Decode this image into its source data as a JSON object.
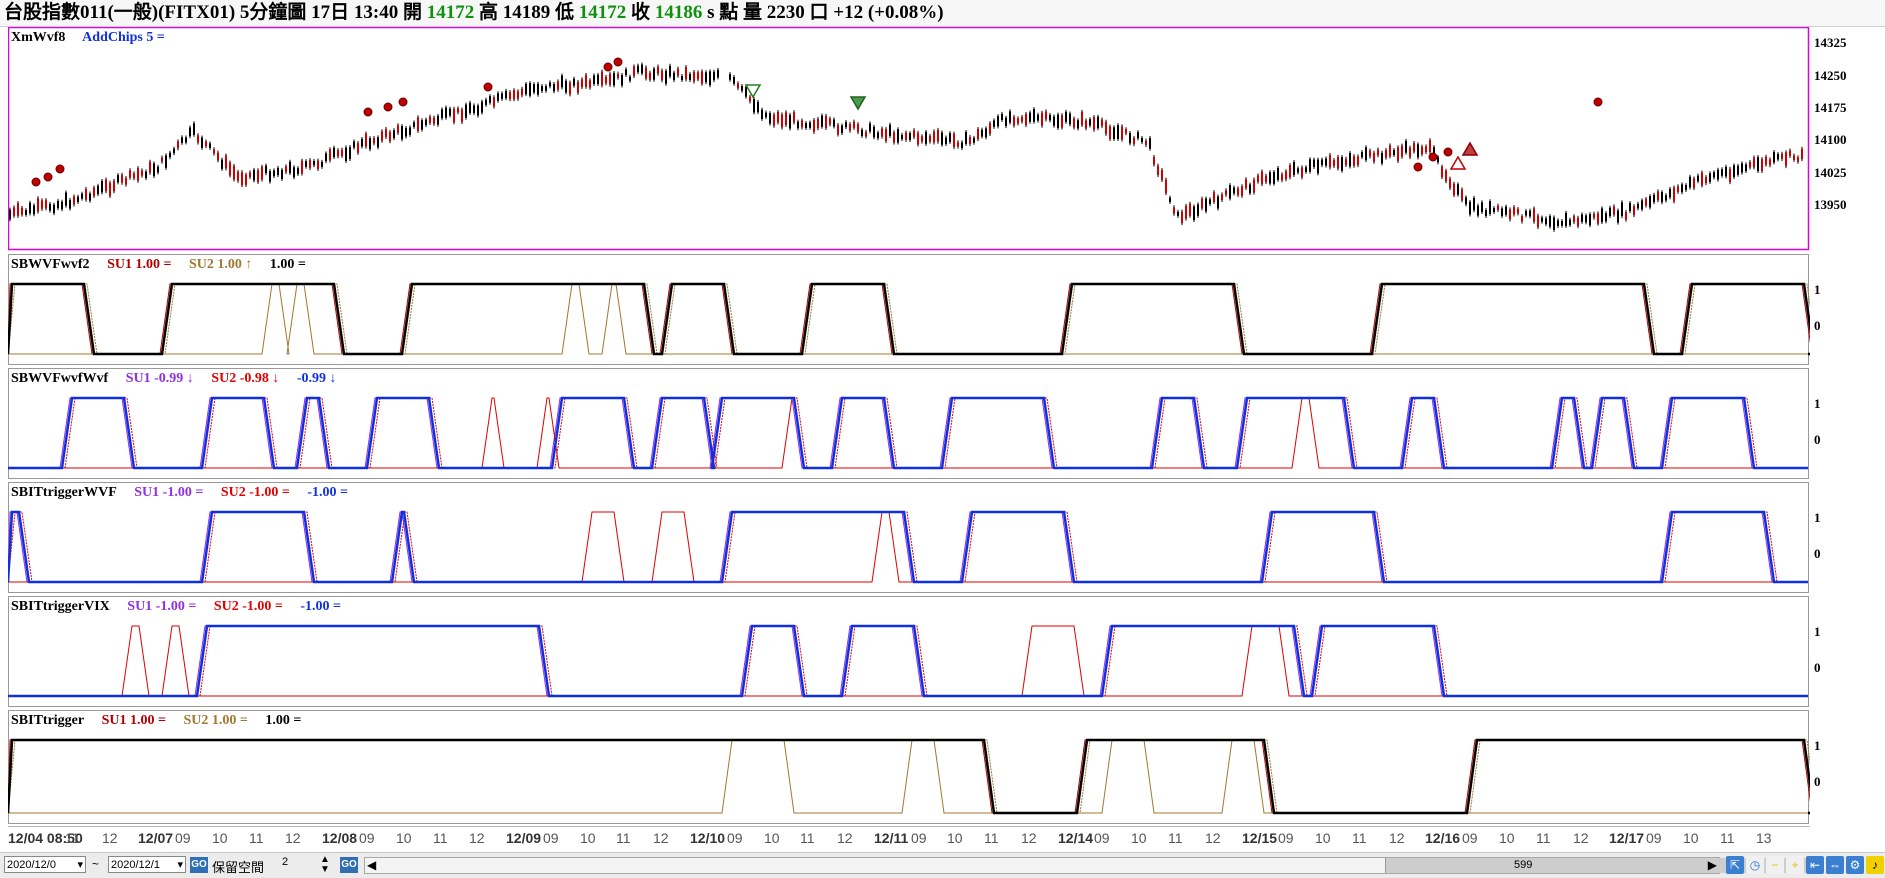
{
  "title": {
    "symbol": "台股指數011(一般)(FITX01)",
    "period": "5分鐘圖",
    "datetime": "17日 13:40",
    "open_label": "開",
    "open": "14172",
    "high_label": "高",
    "high": "14189",
    "low_label": "低",
    "low": "14172",
    "close_label": "收",
    "close": "14186",
    "unit": "s 點",
    "vol_label": "量",
    "volume": "2230",
    "vol_unit": "口",
    "change": "+12 (+0.08%)"
  },
  "panels": [
    {
      "name": "XmWvf8",
      "items": [
        "AddChips 5 ="
      ],
      "axis": [
        "14325",
        "14250",
        "14175",
        "14100",
        "14025",
        "13950"
      ]
    },
    {
      "name": "SBWVFwvf2",
      "items": [
        "SU1 1.00 =",
        "SU2 1.00 ↑",
        "1.00 ="
      ],
      "axis": [
        "1",
        "0"
      ]
    },
    {
      "name": "SBWVFwvfWvf",
      "items": [
        "SU1 -0.99 ↓",
        "SU2 -0.98 ↓",
        "-0.99 ↓"
      ],
      "axis": [
        "1",
        "0"
      ]
    },
    {
      "name": "SBITtriggerWVF",
      "items": [
        "SU1 -1.00 =",
        "SU2 -1.00 =",
        "-1.00 ="
      ],
      "axis": [
        "1",
        "0"
      ]
    },
    {
      "name": "SBITtriggerVIX",
      "items": [
        "SU1 -1.00 =",
        "SU2 -1.00 =",
        "-1.00 ="
      ],
      "axis": [
        "1",
        "0"
      ]
    },
    {
      "name": "SBITtrigger",
      "items": [
        "SU1 1.00 =",
        "SU2 1.00 =",
        "1.00 ="
      ],
      "axis": [
        "1",
        "0"
      ]
    }
  ],
  "xaxis": [
    "12/04 08:50",
    "11",
    "12",
    "12/07",
    "09",
    "10",
    "11",
    "12",
    "12/08",
    "09",
    "10",
    "11",
    "12",
    "12/09",
    "09",
    "10",
    "11",
    "12",
    "12/10",
    "09",
    "10",
    "11",
    "12",
    "12/11",
    "09",
    "10",
    "11",
    "12",
    "12/14",
    "09",
    "10",
    "11",
    "12",
    "12/15",
    "09",
    "10",
    "11",
    "12",
    "12/16",
    "09",
    "10",
    "11",
    "12",
    "12/17",
    "09",
    "10",
    "11",
    "13"
  ],
  "bottom": {
    "date_from": "2020/12/0",
    "tilde": "~",
    "date_to": "2020/12/1",
    "go": "GO",
    "reserve_label": "保留空間",
    "reserve_value": "2",
    "go2": "GO",
    "scroll_value": "599"
  },
  "colors": {
    "up": "#d00000",
    "down": "#000000",
    "su1_red": "#b00000",
    "su2_olive": "#a07830",
    "blue": "#1030e0",
    "purple": "#9030e0",
    "border": "#e000e0"
  }
}
